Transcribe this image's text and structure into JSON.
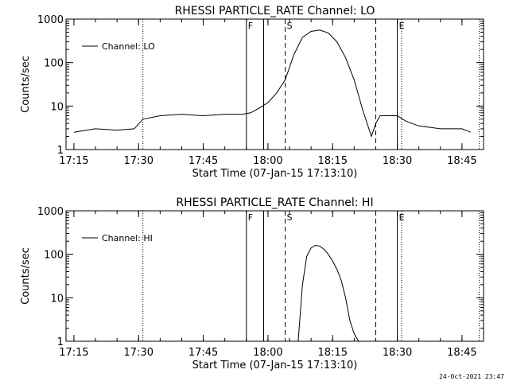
{
  "footer_timestamp": "24-Oct-2021 23:47",
  "chart_data": [
    {
      "type": "line",
      "title": "RHESSI PARTICLE_RATE Channel: LO",
      "xlabel": "Start Time (07-Jan-15 17:13:10)",
      "ylabel": "Counts/sec",
      "y_scale": "log",
      "ylim": [
        1,
        1000
      ],
      "xlim": [
        "17:13:10",
        "18:50:00"
      ],
      "x_ticks": [
        "17:15",
        "17:30",
        "17:45",
        "18:00",
        "18:15",
        "18:30",
        "18:45"
      ],
      "y_ticks": [
        "1",
        "10",
        "100",
        "1000"
      ],
      "legend": "top-left",
      "series": [
        {
          "name": "Channel: LO",
          "x": [
            "17:15",
            "17:20",
            "17:25",
            "17:29",
            "17:31",
            "17:35",
            "17:40",
            "17:45",
            "17:50",
            "17:54",
            "17:56",
            "17:58",
            "18:00",
            "18:02",
            "18:04",
            "18:06",
            "18:08",
            "18:10",
            "18:12",
            "18:14",
            "18:16",
            "18:18",
            "18:20",
            "18:22",
            "18:24",
            "18:25",
            "18:26",
            "18:28",
            "18:30",
            "18:32",
            "18:35",
            "18:40",
            "18:45",
            "18:47"
          ],
          "values": [
            2.5,
            3.0,
            2.8,
            3.0,
            5.0,
            6.0,
            6.5,
            6.0,
            6.5,
            6.5,
            7.0,
            9.0,
            12,
            20,
            40,
            150,
            380,
            520,
            560,
            480,
            300,
            130,
            40,
            8,
            2.0,
            4.0,
            6.0,
            6.0,
            6.0,
            4.5,
            3.5,
            3.0,
            3.0,
            2.5
          ]
        }
      ],
      "markers": {
        "dotted": [
          "17:31",
          "18:31",
          "18:49"
        ],
        "solid": [
          "17:55",
          "17:59",
          "18:30"
        ],
        "dashed": [
          "18:04",
          "18:25"
        ],
        "labels": [
          {
            "text": "F",
            "at": "17:55"
          },
          {
            "text": "S",
            "at": "18:04"
          },
          {
            "text": "E",
            "at": "18:30"
          }
        ]
      }
    },
    {
      "type": "line",
      "title": "RHESSI PARTICLE_RATE Channel: HI",
      "xlabel": "Start Time (07-Jan-15 17:13:10)",
      "ylabel": "Counts/sec",
      "y_scale": "log",
      "ylim": [
        1,
        1000
      ],
      "xlim": [
        "17:13:10",
        "18:50:00"
      ],
      "x_ticks": [
        "17:15",
        "17:30",
        "17:45",
        "18:00",
        "18:15",
        "18:30",
        "18:45"
      ],
      "y_ticks": [
        "1",
        "10",
        "100",
        "1000"
      ],
      "legend": "top-left",
      "series": [
        {
          "name": "Channel: HI",
          "x": [
            "18:07",
            "18:08",
            "18:09",
            "18:10",
            "18:11",
            "18:12",
            "18:13",
            "18:14",
            "18:15",
            "18:16",
            "18:17",
            "18:18",
            "18:19",
            "18:20",
            "18:21"
          ],
          "values": [
            1.0,
            20,
            90,
            140,
            160,
            155,
            130,
            100,
            70,
            45,
            25,
            10,
            3,
            1.5,
            1.0
          ]
        }
      ],
      "markers": {
        "dotted": [
          "17:31",
          "18:31",
          "18:49"
        ],
        "solid": [
          "17:55",
          "17:59",
          "18:30"
        ],
        "dashed": [
          "18:04",
          "18:25"
        ],
        "labels": [
          {
            "text": "F",
            "at": "17:55"
          },
          {
            "text": "S",
            "at": "18:04"
          },
          {
            "text": "E",
            "at": "18:30"
          }
        ]
      }
    }
  ]
}
